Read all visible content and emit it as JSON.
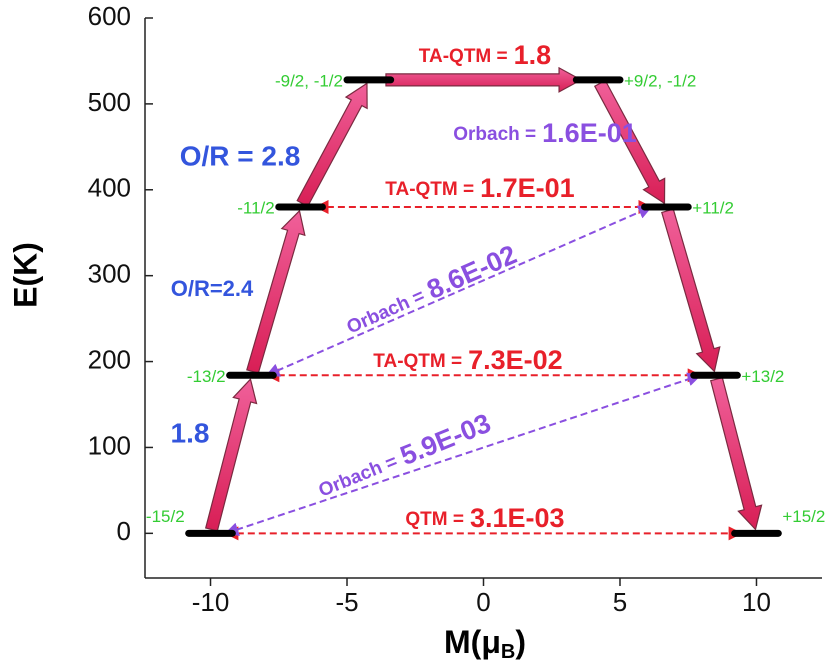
{
  "chart_data": {
    "type": "energy-levels",
    "ylabel": "E(K)",
    "xlabel": [
      "M(μ",
      "B",
      ")"
    ],
    "xlim": [
      -12.4,
      12.4
    ],
    "xticks": [
      -10,
      -5,
      0,
      5,
      10
    ],
    "ylim": [
      -52,
      600
    ],
    "yticks": [
      0,
      100,
      200,
      300,
      400,
      500,
      600
    ],
    "levels": [
      {
        "label": "-15/2",
        "M": -10,
        "E": 0
      },
      {
        "label": "-13/2",
        "M": -8.5,
        "E": 184
      },
      {
        "label": "-11/2",
        "M": -6.7,
        "E": 380
      },
      {
        "label": "-9/2, -1/2",
        "M": -4.2,
        "E": 528
      },
      {
        "label": "+9/2, -1/2",
        "M": 4.2,
        "E": 528
      },
      {
        "label": "+11/2",
        "M": 6.7,
        "E": 380
      },
      {
        "label": "+13/2",
        "M": 8.5,
        "E": 184
      },
      {
        "label": "+15/2",
        "M": 10,
        "E": 0
      }
    ],
    "transitions": [
      {
        "label": "TA-QTM =",
        "value": "1.8"
      },
      {
        "label": "Orbach =",
        "value": "1.6E-01"
      },
      {
        "label": "TA-QTM =",
        "value": "1.7E-01"
      },
      {
        "label": "Orbach =",
        "value": "8.6E-02"
      },
      {
        "label": "TA-QTM =",
        "value": "7.3E-02"
      },
      {
        "label": "Orbach =",
        "value": "5.9E-03"
      },
      {
        "label": "QTM =",
        "value": "3.1E-03"
      }
    ],
    "annotations": [
      "O/R = 2.8",
      "O/R=2.4",
      "1.8"
    ]
  }
}
